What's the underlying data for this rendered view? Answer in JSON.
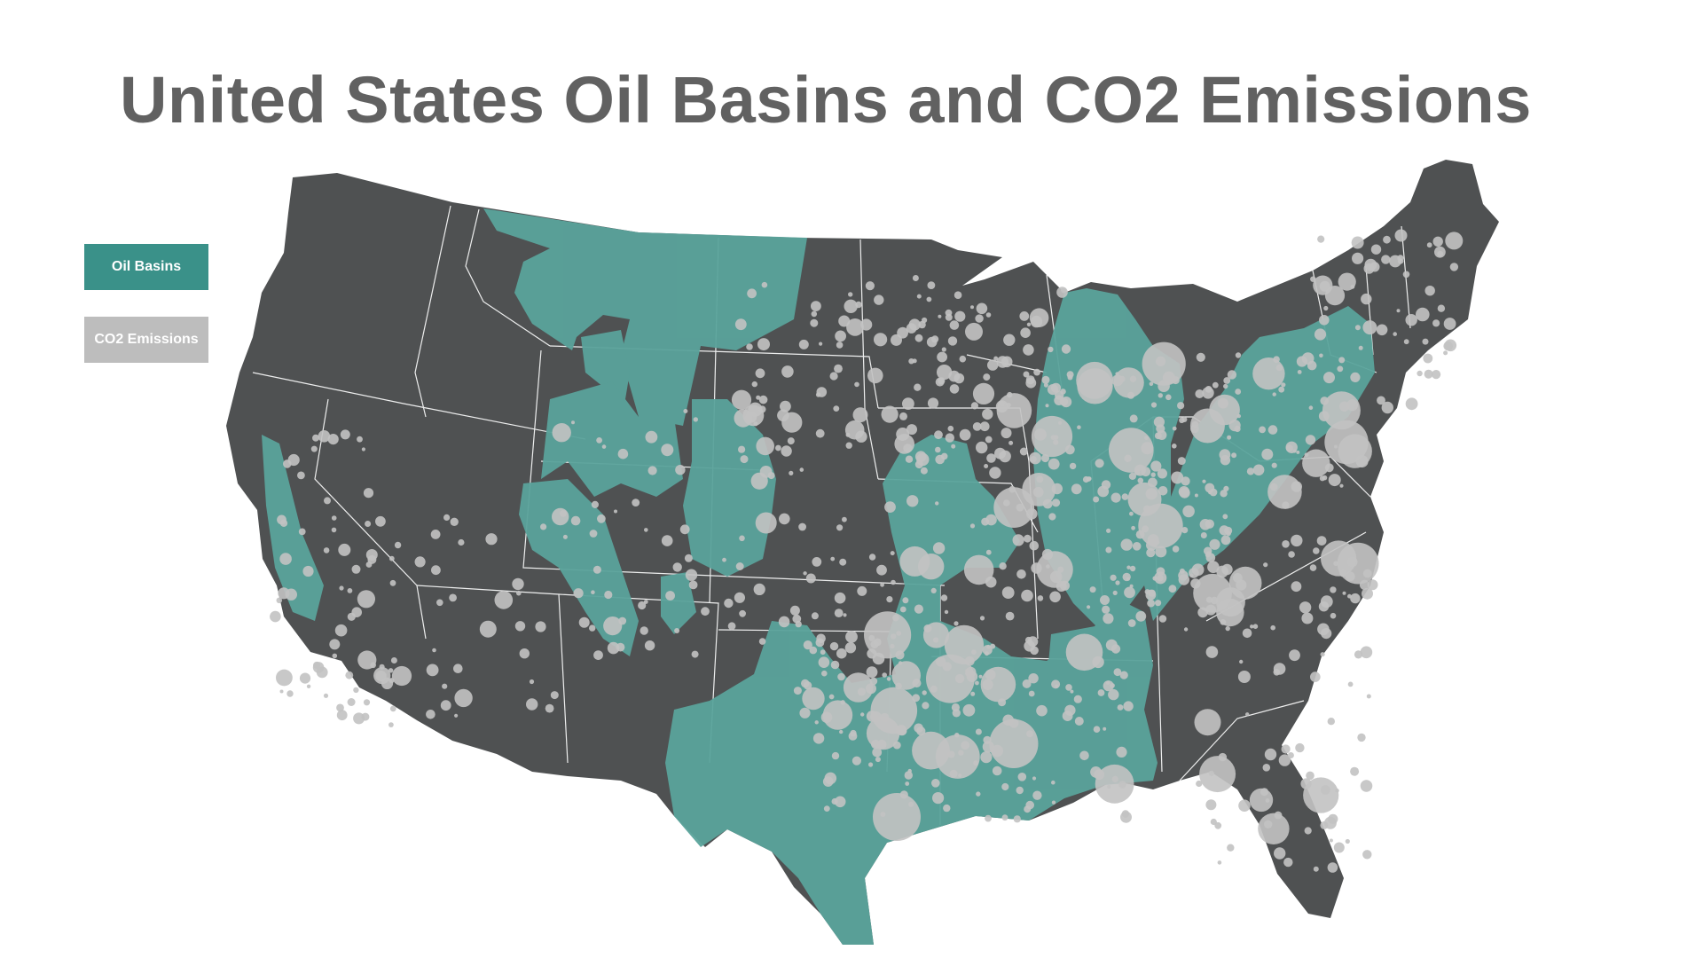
{
  "title": "United States Oil Basins and CO2 Emissions",
  "legend": {
    "oil_basins": {
      "label": "Oil Basins",
      "color": "#3a9189"
    },
    "co2_emissions": {
      "label": "CO2 Emissions",
      "color": "#bdbdbd"
    }
  },
  "map": {
    "region": "Contiguous United States",
    "land_color": "#4f5152",
    "border_color": "#ffffff",
    "basin_fill": "#5aa39b",
    "emission_fill": "#c2c2c2"
  }
}
